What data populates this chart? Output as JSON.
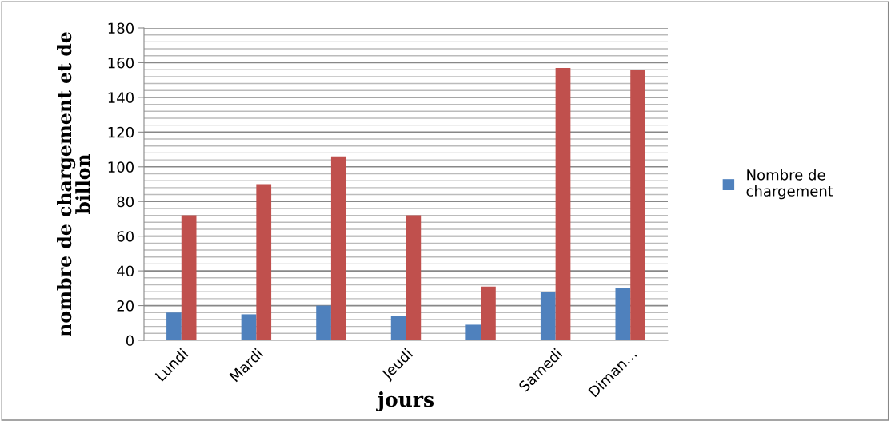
{
  "chart_data": {
    "type": "bar",
    "xlabel": "jours",
    "ylabel": "nombre de chargement et de\nbillon",
    "categories": [
      "Lundi",
      "Mardi",
      null,
      "Jeudi",
      null,
      "Samedi",
      "Diman…"
    ],
    "series": [
      {
        "name": "Nombre de chargement",
        "color": "#4f81bd",
        "values": [
          16,
          15,
          20,
          14,
          9,
          28,
          30
        ]
      },
      {
        "color": "#c0504d",
        "values": [
          72,
          90,
          106,
          72,
          31,
          157,
          156
        ]
      }
    ],
    "ylim": [
      0,
      180
    ],
    "yticks": [
      0,
      20,
      40,
      60,
      80,
      100,
      120,
      140,
      160,
      180
    ],
    "grid": "y",
    "legend": "right"
  }
}
